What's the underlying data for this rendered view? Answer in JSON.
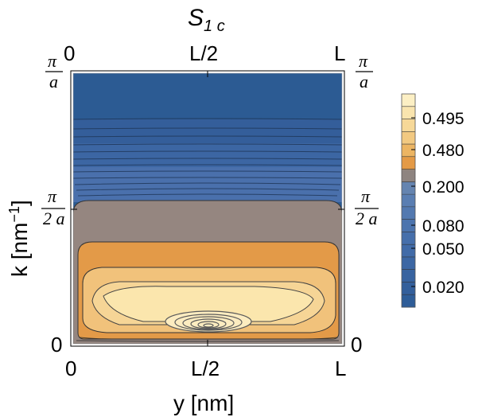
{
  "chart_data": {
    "type": "heatmap",
    "title": "S",
    "title_sub": "1 c",
    "xlabel": "y [nm]",
    "ylabel_main": "k [nm",
    "ylabel_sup": "−1",
    "ylabel_close": "]",
    "x_ticks": [
      "0",
      "L/2",
      "L"
    ],
    "y_ticks_plain": [
      "0"
    ],
    "y_tick_pi": "π",
    "y_tick_a": "a",
    "y_tick_2a": "2 a",
    "colorbar": {
      "tick_labels": [
        "0.495",
        "0.480",
        "0.200",
        "0.080",
        "0.050",
        "0.020"
      ],
      "bands": [
        "#2e5d98",
        "#335f9b",
        "#3763a0",
        "#3c67a4",
        "#416ba8",
        "#466fab",
        "#4c74ae",
        "#5379b0",
        "#5a7eb2",
        "#6584b0",
        "#8e8480",
        "#e49a46",
        "#ecb563",
        "#f2c981",
        "#f6d898",
        "#f9e4ae",
        "#fcefc4"
      ]
    },
    "plot_colors": {
      "deep_blue": "#2c5b93",
      "mid_blue": "#4468a8",
      "gray_band": "#958680",
      "orange": "#e39a48",
      "light_orange": "#f1c27b",
      "peak": "#fbe6ad"
    }
  }
}
